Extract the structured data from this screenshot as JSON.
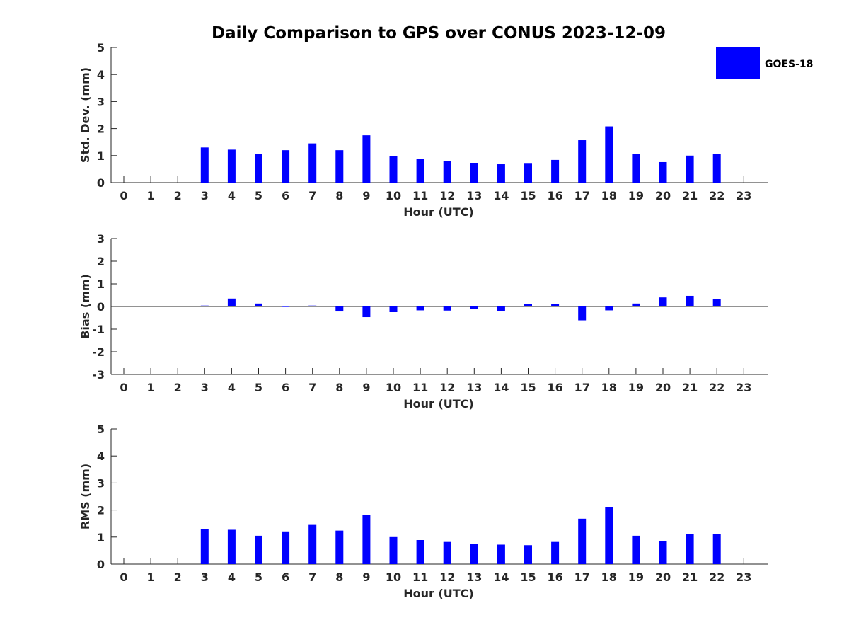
{
  "chart_data": [
    {
      "type": "bar",
      "title": "Daily Comparison to GPS over CONUS 2023-12-09",
      "xlabel": "Hour (UTC)",
      "ylabel": "Std. Dev. (mm)",
      "ylim": [
        0,
        5
      ],
      "yticks": [
        "0",
        "1",
        "2",
        "3",
        "4",
        "5"
      ],
      "categories": [
        "0",
        "1",
        "2",
        "3",
        "4",
        "5",
        "6",
        "7",
        "8",
        "9",
        "10",
        "11",
        "12",
        "13",
        "14",
        "15",
        "16",
        "17",
        "18",
        "19",
        "20",
        "21",
        "22",
        "23"
      ],
      "series": [
        {
          "name": "GOES-18",
          "color": "#0000ff",
          "values": [
            null,
            null,
            null,
            1.3,
            1.22,
            1.07,
            1.2,
            1.45,
            1.2,
            1.75,
            0.97,
            0.87,
            0.8,
            0.73,
            0.68,
            0.7,
            0.84,
            1.57,
            2.08,
            1.05,
            0.76,
            1.0,
            1.07,
            null
          ]
        }
      ],
      "legend": {
        "labels": [
          "GOES-18"
        ],
        "position": "top-right"
      }
    },
    {
      "type": "bar",
      "xlabel": "Hour (UTC)",
      "ylabel": "Bias (mm)",
      "ylim": [
        -3,
        3
      ],
      "yticks": [
        "-3",
        "-2",
        "-1",
        "0",
        "1",
        "2",
        "3"
      ],
      "zero_line": true,
      "categories": [
        "0",
        "1",
        "2",
        "3",
        "4",
        "5",
        "6",
        "7",
        "8",
        "9",
        "10",
        "11",
        "12",
        "13",
        "14",
        "15",
        "16",
        "17",
        "18",
        "19",
        "20",
        "21",
        "22",
        "23"
      ],
      "series": [
        {
          "name": "GOES-18",
          "color": "#0000ff",
          "values": [
            null,
            null,
            null,
            0.04,
            0.35,
            0.13,
            -0.02,
            0.04,
            -0.22,
            -0.47,
            -0.25,
            -0.17,
            -0.18,
            -0.1,
            -0.2,
            0.1,
            0.1,
            -0.61,
            -0.17,
            0.13,
            0.4,
            0.47,
            0.34,
            null
          ]
        }
      ]
    },
    {
      "type": "bar",
      "xlabel": "Hour (UTC)",
      "ylabel": "RMS (mm)",
      "ylim": [
        0,
        5
      ],
      "yticks": [
        "0",
        "1",
        "2",
        "3",
        "4",
        "5"
      ],
      "categories": [
        "0",
        "1",
        "2",
        "3",
        "4",
        "5",
        "6",
        "7",
        "8",
        "9",
        "10",
        "11",
        "12",
        "13",
        "14",
        "15",
        "16",
        "17",
        "18",
        "19",
        "20",
        "21",
        "22",
        "23"
      ],
      "series": [
        {
          "name": "GOES-18",
          "color": "#0000ff",
          "values": [
            null,
            null,
            null,
            1.3,
            1.27,
            1.05,
            1.21,
            1.45,
            1.24,
            1.82,
            1.0,
            0.89,
            0.82,
            0.74,
            0.72,
            0.7,
            0.82,
            1.68,
            2.1,
            1.05,
            0.85,
            1.1,
            1.1,
            null
          ]
        }
      ]
    }
  ]
}
